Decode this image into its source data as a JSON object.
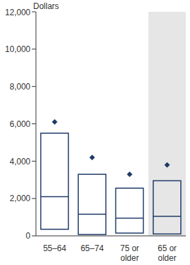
{
  "chart_data": {
    "type": "box",
    "ylabel": "Dollars",
    "categories": [
      "55–64",
      "65–74",
      "75 or older",
      "65 or older"
    ],
    "q1": [
      350,
      75,
      150,
      100
    ],
    "median": [
      2100,
      1160,
      950,
      1050
    ],
    "q3": [
      5500,
      3300,
      2550,
      2950
    ],
    "mean": [
      6100,
      4200,
      3300,
      3800
    ],
    "color": "#1f3a68",
    "ylim": [
      0,
      12000
    ],
    "yticks": [
      0,
      {
        "value": 2000,
        "label": "2,000"
      },
      {
        "value": 4000,
        "label": "4,000"
      },
      {
        "value": 6000,
        "label": "6,000"
      },
      {
        "value": 8000,
        "label": "8,000"
      },
      {
        "value": 10000,
        "label": "10,000"
      },
      {
        "value": 12000,
        "label": "12,000"
      }
    ],
    "grid": false
  }
}
